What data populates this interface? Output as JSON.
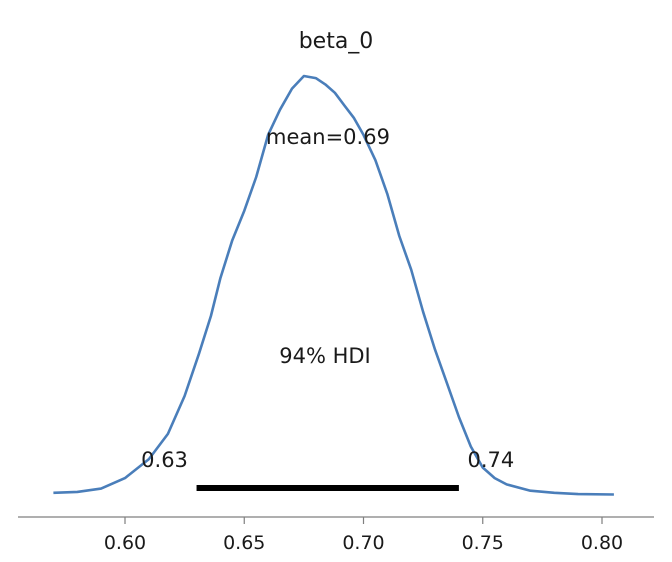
{
  "chart_data": {
    "type": "line",
    "title": "beta_0",
    "xlabel": "",
    "ylabel": "",
    "xlim": [
      0.57,
      0.805
    ],
    "grid": false,
    "x_ticks": [
      0.6,
      0.65,
      0.7,
      0.75,
      0.8
    ],
    "x_tick_labels": [
      "0.60",
      "0.65",
      "0.70",
      "0.75",
      "0.80"
    ],
    "series": [
      {
        "x": [
          0.57,
          0.58,
          0.59,
          0.6,
          0.61,
          0.618,
          0.625,
          0.631,
          0.636,
          0.64,
          0.645,
          0.65,
          0.655,
          0.66,
          0.665,
          0.67,
          0.675,
          0.68,
          0.684,
          0.688,
          0.692,
          0.696,
          0.7,
          0.705,
          0.71,
          0.715,
          0.72,
          0.725,
          0.73,
          0.735,
          0.74,
          0.745,
          0.75,
          0.755,
          0.76,
          0.77,
          0.78,
          0.79,
          0.805
        ],
        "y": [
          0.01,
          0.012,
          0.02,
          0.045,
          0.09,
          0.15,
          0.24,
          0.34,
          0.43,
          0.52,
          0.61,
          0.68,
          0.76,
          0.86,
          0.92,
          0.97,
          1.0,
          0.995,
          0.98,
          0.96,
          0.93,
          0.9,
          0.86,
          0.8,
          0.72,
          0.62,
          0.54,
          0.44,
          0.35,
          0.27,
          0.19,
          0.12,
          0.07,
          0.045,
          0.03,
          0.015,
          0.01,
          0.007,
          0.006
        ]
      }
    ],
    "annotations": {
      "mean_label": "mean=0.69",
      "hdi_label": "94% HDI",
      "hdi_low": 0.63,
      "hdi_high": 0.74,
      "hdi_low_label": "0.63",
      "hdi_high_label": "0.74"
    },
    "colors": {
      "line": "#4a7eba",
      "hdi_bar": "#000000",
      "axis": "#7f7f7f"
    }
  }
}
